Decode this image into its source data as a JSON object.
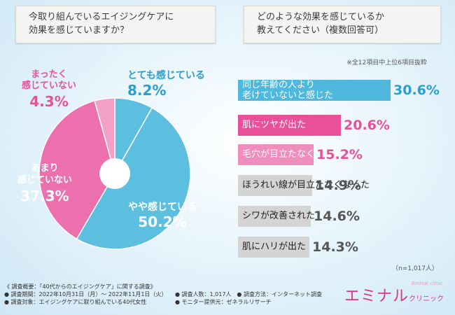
{
  "left_question": {
    "line1": "今取り組んでいるエイジングケアに",
    "line2": "効果を感じていますか？"
  },
  "right_question": {
    "line1": "どのような効果を感じているか",
    "line2": "教えてください（複数回答可）"
  },
  "note": "※全12項目中上位6項目抜粋",
  "sample_size": "（n=1,017人）",
  "chart_data": [
    {
      "type": "pie",
      "title": "今取り組んでいるエイジングケアに効果を感じていますか？",
      "labels": [
        "とても感じている",
        "やや感じている",
        "あまり感じていない",
        "まったく感じていない"
      ],
      "values": [
        8.2,
        50.2,
        37.3,
        4.3
      ],
      "value_labels": [
        "8.2%",
        "50.2%",
        "37.3%",
        "4.3%"
      ],
      "label_lines": [
        [
          "とても感じている"
        ],
        [
          "やや感じている"
        ],
        [
          "あまり",
          "感じていない"
        ],
        [
          "まったく",
          "感じていない"
        ]
      ],
      "colors": [
        "#5cbfe0",
        "#5cbfe0",
        "#ec6fae",
        "#f3a0c8"
      ]
    },
    {
      "type": "bar",
      "title": "どのような効果を感じているか教えてください（複数回答可）",
      "categories": [
        "同じ年齢の人より老けていないと感じた",
        "肌にツヤが出た",
        "毛穴が目立たなくなった",
        "ほうれい線が目立たなくなった",
        "シワが改善された",
        "肌にハリが出た"
      ],
      "label_lines": [
        [
          "同じ年齢の人より",
          "老けていないと感じた"
        ],
        [
          "肌にツヤが出た"
        ],
        [
          "毛穴が目立たなくなった"
        ],
        [
          "ほうれい線が目立たなくなった"
        ],
        [
          "シワが改善された"
        ],
        [
          "肌にハリが出た"
        ]
      ],
      "values": [
        30.6,
        20.6,
        15.2,
        14.9,
        14.6,
        14.3
      ],
      "value_labels": [
        "30.6%",
        "20.6%",
        "15.2%",
        "14.9%",
        "14.6%",
        "14.3%"
      ],
      "colors": [
        "#4fb8dd",
        "#e9509a",
        "#ef8dbd",
        "#d4d4d4",
        "#d4d4d4",
        "#d4d4d4"
      ],
      "value_colors": [
        "#2a9fcf",
        "#e9509a",
        "#e9509a",
        "#555555",
        "#555555",
        "#555555"
      ]
    }
  ],
  "footer": {
    "l1": "《 調査概要：「40代からのエイジングケア」に関する調査》",
    "l2": "● 調査期間：2022年10月31日（月）～ 2022年11月1日（火）",
    "l3": "● 調査対象：エイジングケアに取り組んでいる40代女性",
    "r1": "● 調査人数：1,017人　● 調査方法：インターネット調査",
    "r2": "● モニター提供元：ゼネラルリサーチ"
  },
  "logo": {
    "main": "エミナル",
    "sub": "クリニック",
    "small": "Eminal clinic"
  }
}
